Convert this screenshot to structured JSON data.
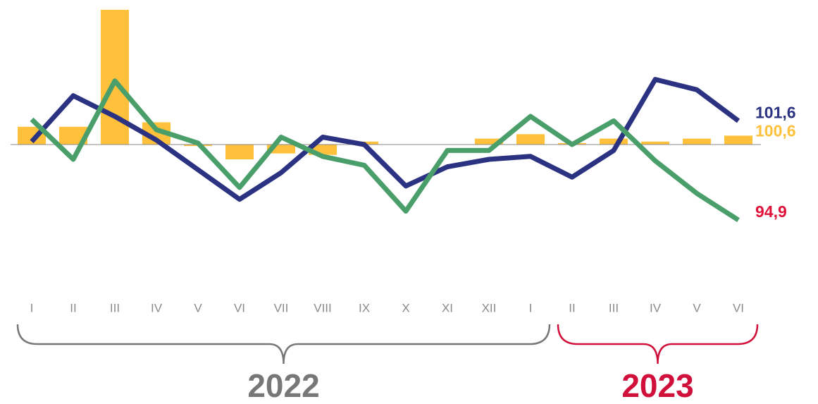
{
  "chart_data": {
    "type": "bar_line",
    "categories": [
      "I",
      "II",
      "III",
      "IV",
      "V",
      "VI",
      "VII",
      "VIII",
      "IX",
      "X",
      "XI",
      "XII",
      "I",
      "II",
      "III",
      "IV",
      "V",
      "VI"
    ],
    "baseline": 100,
    "ylim": [
      90,
      110
    ],
    "series": [
      {
        "name": null,
        "type": "bar",
        "color": "#ffc13b",
        "label_color": "#ffc13b",
        "values": [
          101.2,
          101.2,
          109.1,
          101.5,
          99.9,
          99.0,
          99.4,
          99.3,
          100.2,
          100,
          100,
          100.4,
          100.7,
          100.1,
          100.4,
          100.2,
          100.4,
          100.6
        ],
        "value_labels": [
          null,
          null,
          null,
          null,
          null,
          null,
          null,
          null,
          null,
          null,
          null,
          null,
          null,
          null,
          null,
          null,
          null,
          "100,6"
        ]
      },
      {
        "name": null,
        "type": "line",
        "color": "#2b3282",
        "label_color": "#2b3282",
        "values": [
          100.2,
          103.3,
          101.9,
          100.3,
          98.3,
          96.3,
          98.1,
          100.5,
          100,
          97.2,
          98.5,
          99.0,
          99.2,
          97.8,
          99.6,
          104.4,
          103.7,
          101.6
        ],
        "value_labels": [
          null,
          null,
          null,
          null,
          null,
          null,
          null,
          null,
          null,
          null,
          null,
          null,
          null,
          null,
          null,
          null,
          null,
          "101,6"
        ]
      },
      {
        "name": null,
        "type": "line",
        "color": "#4a9e6a",
        "label_color": "#e0103a",
        "values": [
          101.7,
          99.0,
          104.3,
          101.0,
          100.1,
          97.1,
          100.5,
          99.2,
          98.6,
          95.5,
          99.6,
          99.6,
          101.9,
          100.0,
          101.6,
          98.9,
          96.7,
          94.9
        ],
        "value_labels": [
          null,
          null,
          null,
          null,
          null,
          null,
          null,
          null,
          null,
          null,
          null,
          null,
          null,
          null,
          null,
          null,
          null,
          "94,9"
        ]
      }
    ],
    "groups": [
      {
        "label": "2022",
        "start": 0,
        "end": 12,
        "color": "#777777"
      },
      {
        "label": "2023",
        "start": 13,
        "end": 17,
        "color": "#d0103a"
      }
    ]
  }
}
